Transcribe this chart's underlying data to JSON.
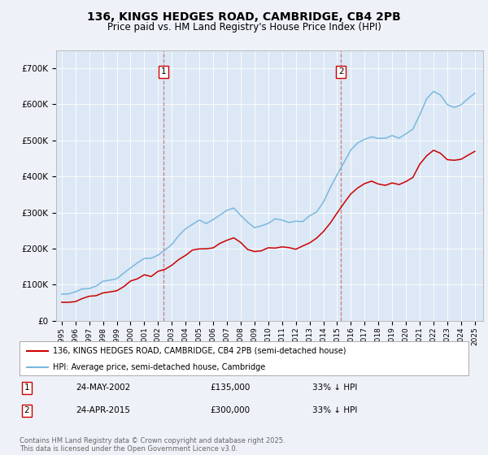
{
  "title": "136, KINGS HEDGES ROAD, CAMBRIDGE, CB4 2PB",
  "subtitle": "Price paid vs. HM Land Registry's House Price Index (HPI)",
  "title_fontsize": 10,
  "subtitle_fontsize": 8.5,
  "background_color": "#eef2f8",
  "plot_background": "#dce8f5",
  "legend_label_red": "136, KINGS HEDGES ROAD, CAMBRIDGE, CB4 2PB (semi-detached house)",
  "legend_label_blue": "HPI: Average price, semi-detached house, Cambridge",
  "sale1_year": 2002.38,
  "sale2_year": 2015.29,
  "sale1_date": "24-MAY-2002",
  "sale1_price": "£135,000",
  "sale1_hpi": "33% ↓ HPI",
  "sale2_date": "24-APR-2015",
  "sale2_price": "£300,000",
  "sale2_hpi": "33% ↓ HPI",
  "footer": "Contains HM Land Registry data © Crown copyright and database right 2025.\nThis data is licensed under the Open Government Licence v3.0.",
  "ylim_max": 750000,
  "red_color": "#cc0000",
  "blue_color": "#7ab8df",
  "dashed_color": "#cc6666"
}
